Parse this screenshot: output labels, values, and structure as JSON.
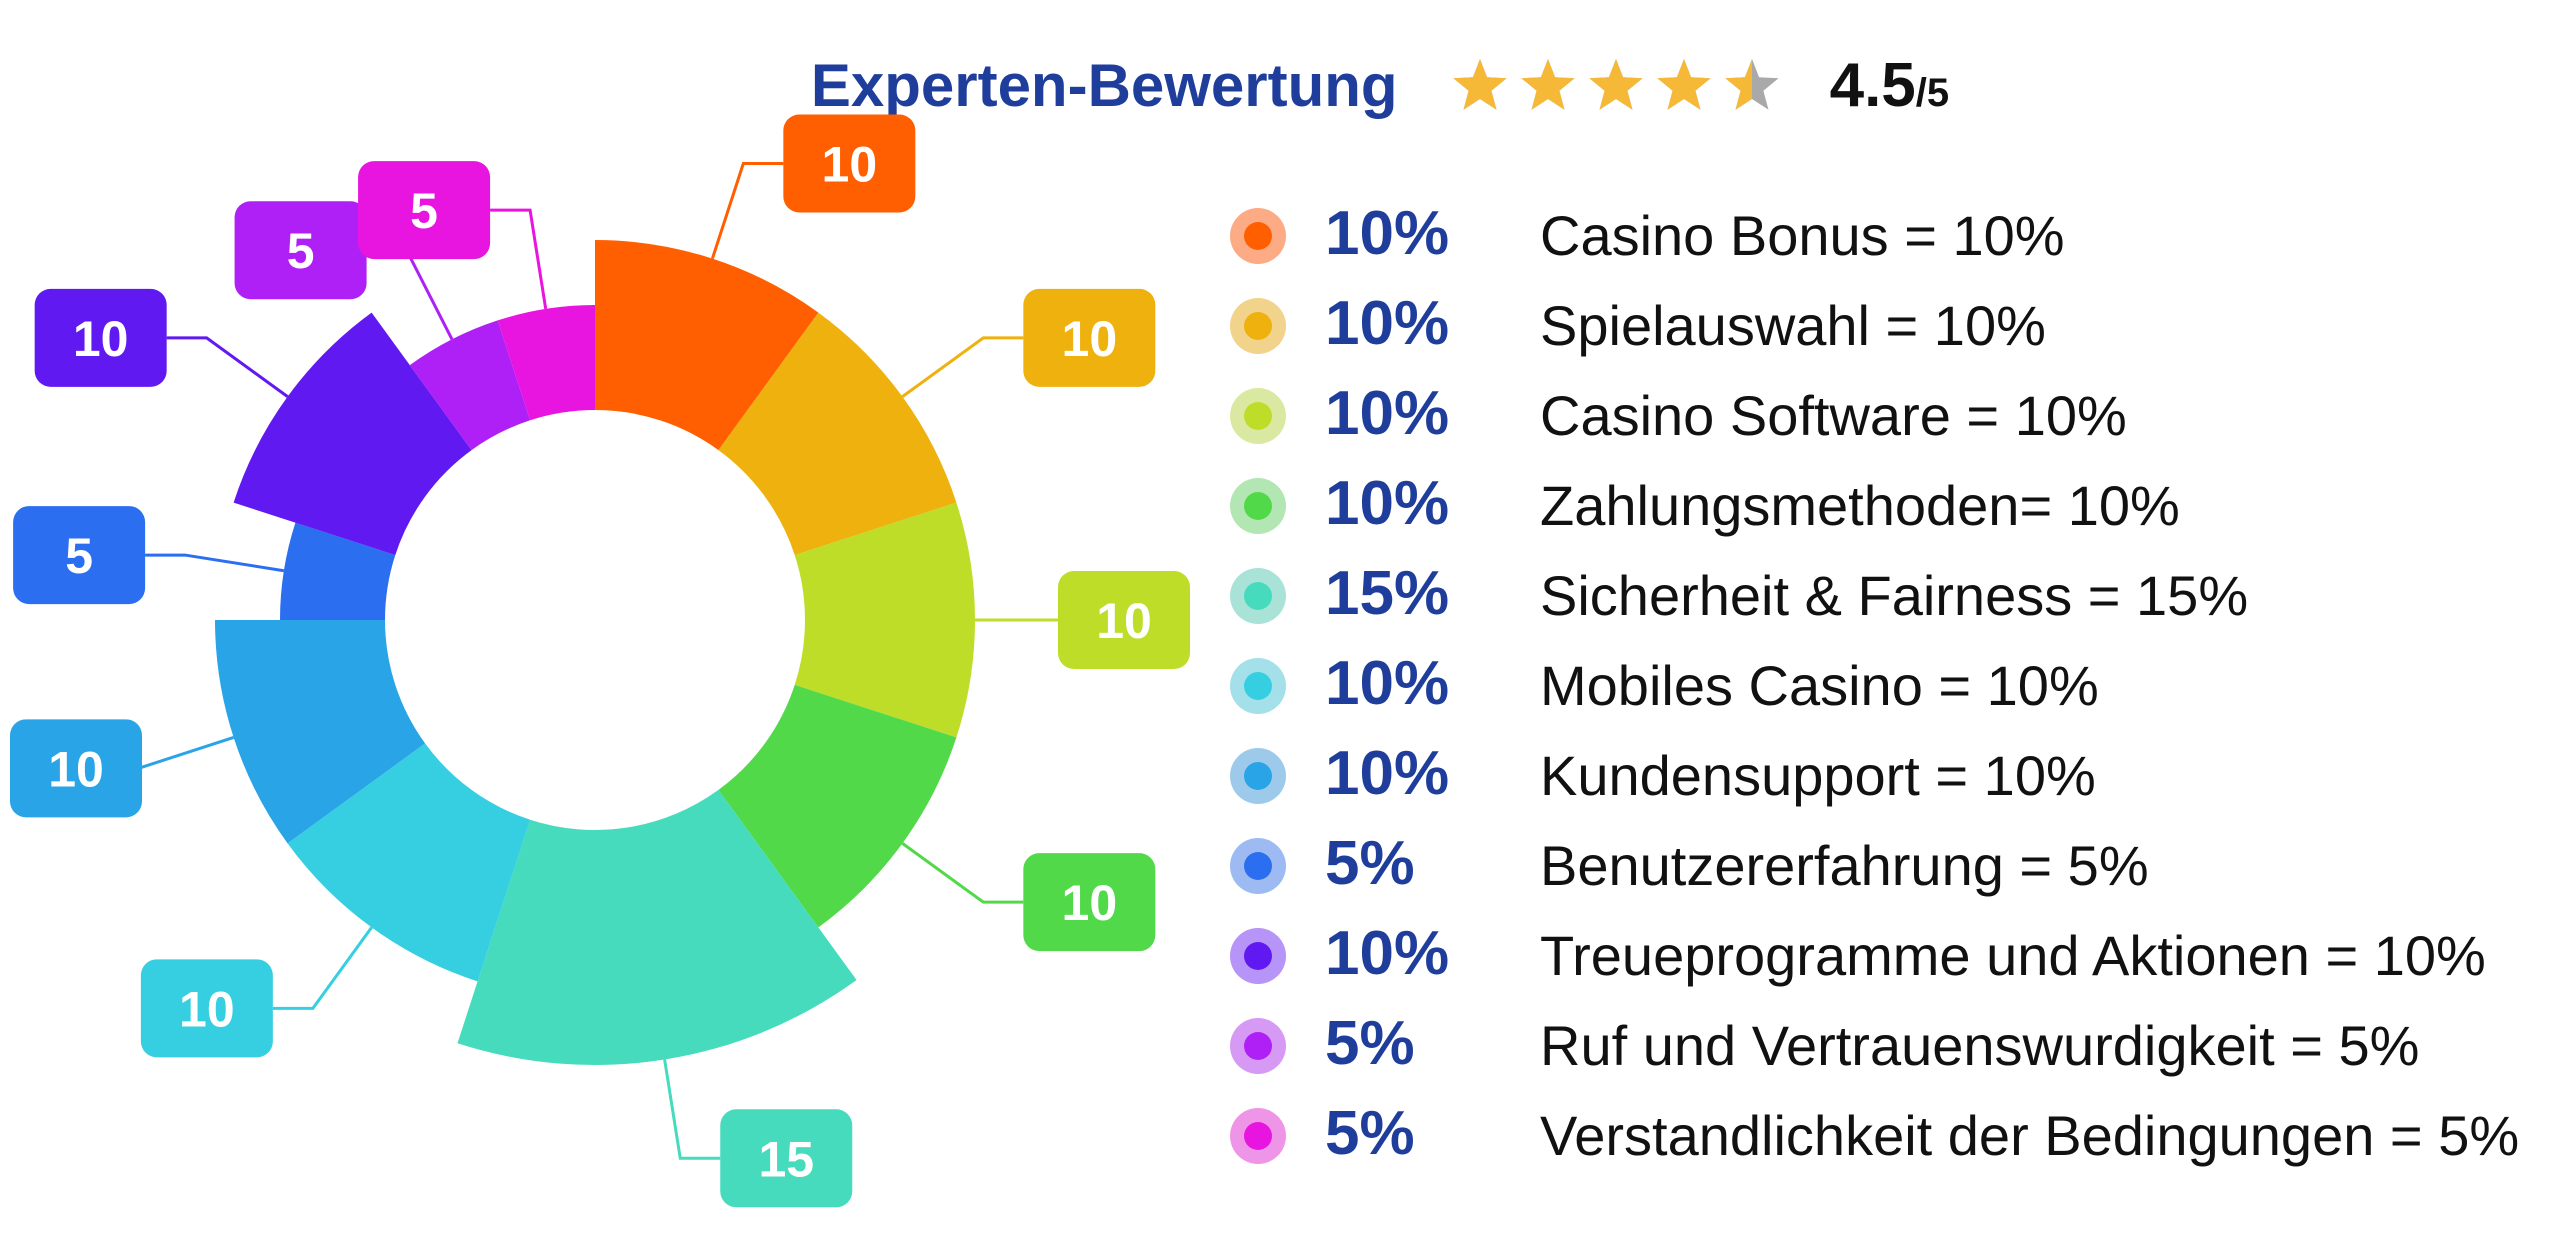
{
  "header": {
    "title": "Experten-Bewertung",
    "rating_value": "4.5",
    "rating_max": "/5",
    "stars_filled": 4.5,
    "stars_total": 5,
    "star_color": "#f5b937",
    "star_empty_color": "#a9a9a9"
  },
  "chart_data": {
    "type": "pie",
    "variant": "polar-area-donut",
    "categories": [
      "Casino Bonus",
      "Spielauswahl",
      "Casino Software",
      "Zahlungsmethoden",
      "Sicherheit & Fairness",
      "Mobiles Casino",
      "Kundensupport",
      "Benutzererfahrung",
      "Treueprogramme und Aktionen",
      "Ruf und Vertrauenswurdigkeit",
      "Verstandlichkeit der Bedingungen"
    ],
    "values": [
      10,
      10,
      10,
      10,
      15,
      10,
      10,
      5,
      10,
      5,
      5
    ],
    "colors": [
      "#ff5f00",
      "#eeb10e",
      "#bedd28",
      "#52d94a",
      "#46dbbd",
      "#36cfe2",
      "#29a4e7",
      "#2b6ff0",
      "#6119f2",
      "#ae20f5",
      "#e815e0"
    ],
    "dot_ring_colors": [
      "#fcab85",
      "#f2d38c",
      "#d9e9a2",
      "#b2e6b2",
      "#a9e3d8",
      "#a3e0ea",
      "#9dcaea",
      "#9dbbf2",
      "#b794f7",
      "#d69af5",
      "#ee95e7"
    ],
    "segment_labels": [
      "10",
      "10",
      "10",
      "10",
      "15",
      "10",
      "10",
      "5",
      "10",
      "5",
      "5"
    ],
    "legend_percent": [
      "10%",
      "10%",
      "10%",
      "10%",
      "15%",
      "10%",
      "10%",
      "5%",
      "10%",
      "5%",
      "5%"
    ],
    "legend_text": [
      "Casino Bonus = 10%",
      "Spielauswahl = 10%",
      "Casino Software = 10%",
      "Zahlungsmethoden= 10%",
      "Sicherheit & Fairness = 15%",
      "Mobiles Casino = 10%",
      "Kundensupport = 10%",
      "Benutzererfahrung = 5%",
      "Treueprogramme und Aktionen = 10%",
      "Ruf und Vertrauenswurdigkeit = 5%",
      "Verstandlichkeit der Bedingungen = 5%"
    ],
    "legend_placement": "right"
  }
}
